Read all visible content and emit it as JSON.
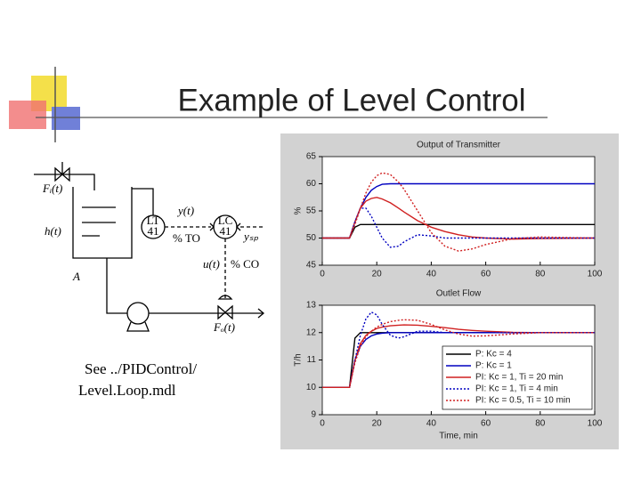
{
  "slide": {
    "title": "Example of Level Control",
    "note": [
      "See ../PIDControl/",
      "Level.Loop.mdl"
    ]
  },
  "diagram": {
    "labels": [
      "Fᵢ(t)",
      "h(t)",
      "A",
      "LT",
      "41",
      "LC",
      "41",
      "y(t)",
      "% TO",
      "yₛₚ",
      "u(t)",
      "% CO",
      "Fₒ(t)"
    ]
  },
  "chart_data": [
    {
      "type": "line",
      "title": "Output of Transmitter",
      "ylabel": "%",
      "x": [
        0,
        10,
        12,
        14,
        16,
        18,
        20,
        22,
        25,
        28,
        30,
        35,
        40,
        45,
        50,
        55,
        60,
        70,
        80,
        100
      ],
      "xlim": [
        0,
        100
      ],
      "xticks": [
        0,
        20,
        40,
        60,
        80,
        100
      ],
      "ylim": [
        45,
        65
      ],
      "yticks": [
        45,
        50,
        55,
        60,
        65
      ],
      "series": [
        {
          "color": "#000000",
          "linestyle": "solid",
          "values": [
            50,
            50,
            52,
            52.5,
            52.5,
            52.5,
            52.5,
            52.5,
            52.5,
            52.5,
            52.5,
            52.5,
            52.5,
            52.5,
            52.5,
            52.5,
            52.5,
            52.5,
            52.5,
            52.5
          ]
        },
        {
          "color": "#0000c0",
          "linestyle": "solid",
          "values": [
            50,
            50,
            53,
            55.5,
            57.5,
            58.8,
            59.5,
            59.9,
            60,
            60,
            60,
            60,
            60,
            60,
            60,
            60,
            60,
            60,
            60,
            60
          ]
        },
        {
          "color": "#d02020",
          "linestyle": "solid",
          "values": [
            50,
            50,
            53,
            55.5,
            56.8,
            57.3,
            57.5,
            57.2,
            56.5,
            55.5,
            54.8,
            53.2,
            52,
            51.2,
            50.6,
            50.2,
            50,
            49.8,
            49.9,
            50
          ]
        },
        {
          "color": "#0000c0",
          "linestyle": "dotted",
          "values": [
            50,
            50,
            53,
            55.5,
            55.5,
            54,
            52,
            50,
            48.3,
            48.5,
            49.3,
            50.6,
            50.4,
            50,
            50,
            50,
            50,
            50,
            50,
            50
          ]
        },
        {
          "color": "#d02020",
          "linestyle": "dotted",
          "values": [
            50,
            50,
            52.5,
            55.5,
            58.3,
            60.3,
            61.5,
            62,
            61.7,
            60.3,
            59,
            55,
            51,
            48.5,
            47.6,
            48,
            48.8,
            49.9,
            50.2,
            50
          ]
        }
      ]
    },
    {
      "type": "line",
      "title": "Outlet Flow",
      "ylabel": "T/h",
      "xlabel": "Time, min",
      "legend": "lower right",
      "x": [
        0,
        10,
        12,
        14,
        16,
        18,
        20,
        22,
        25,
        28,
        30,
        35,
        40,
        45,
        50,
        55,
        60,
        70,
        80,
        100
      ],
      "xlim": [
        0,
        100
      ],
      "xticks": [
        0,
        20,
        40,
        60,
        80,
        100
      ],
      "ylim": [
        9,
        13
      ],
      "yticks": [
        9,
        10,
        11,
        12,
        13
      ],
      "series": [
        {
          "name": "P: Kc = 4",
          "color": "#000000",
          "linestyle": "solid",
          "values": [
            10,
            10,
            11.8,
            12,
            12,
            12,
            12,
            12,
            12,
            12,
            12,
            12,
            12,
            12,
            12,
            12,
            12,
            12,
            12,
            12
          ]
        },
        {
          "name": "P: Kc = 1",
          "color": "#0000c0",
          "linestyle": "solid",
          "values": [
            10,
            10,
            11,
            11.5,
            11.75,
            11.88,
            11.95,
            11.98,
            12,
            12,
            12,
            12,
            12,
            12,
            12,
            12,
            12,
            12,
            12,
            12
          ]
        },
        {
          "name": "PI: Kc = 1, Ti = 20 min",
          "color": "#d02020",
          "linestyle": "solid",
          "values": [
            10,
            10,
            11,
            11.6,
            11.9,
            12.05,
            12.15,
            12.2,
            12.25,
            12.27,
            12.28,
            12.27,
            12.23,
            12.18,
            12.12,
            12.08,
            12.05,
            12.01,
            12,
            12
          ]
        },
        {
          "name": "PI: Kc = 1, Ti = 4 min",
          "color": "#0000c0",
          "linestyle": "dotted",
          "values": [
            10,
            10,
            11,
            11.9,
            12.5,
            12.75,
            12.65,
            12.3,
            11.9,
            11.8,
            11.85,
            12.05,
            12.05,
            12,
            12,
            12,
            12,
            12,
            12,
            12
          ]
        },
        {
          "name": "PI: Kc = 0.5, Ti = 10 min",
          "color": "#d02020",
          "linestyle": "dotted",
          "values": [
            10,
            10,
            10.9,
            11.5,
            11.85,
            12.05,
            12.2,
            12.3,
            12.4,
            12.45,
            12.47,
            12.45,
            12.3,
            12.1,
            11.95,
            11.87,
            11.88,
            11.95,
            12,
            12
          ]
        }
      ]
    }
  ]
}
